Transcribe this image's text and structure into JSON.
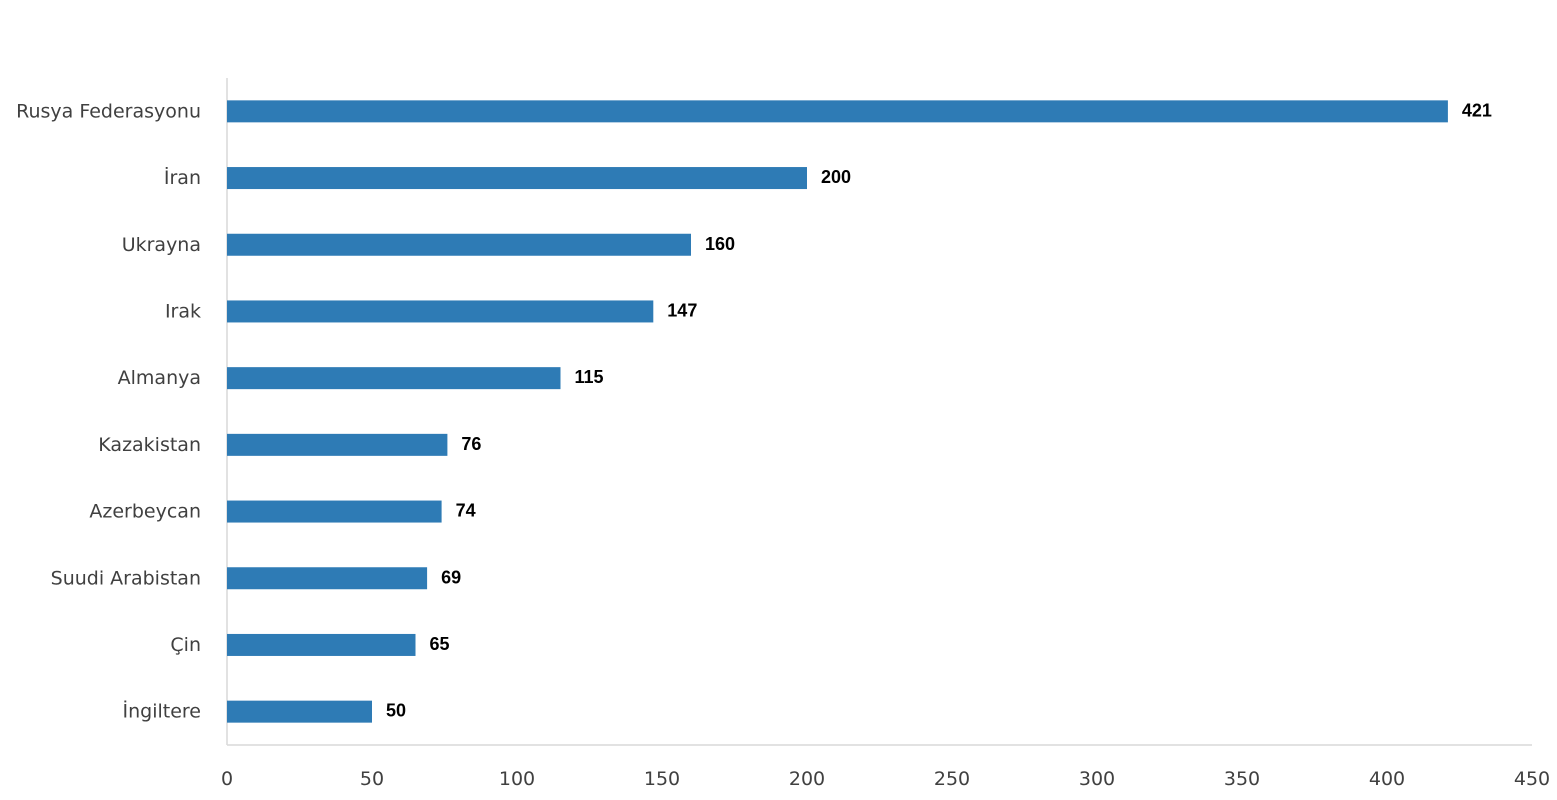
{
  "chart_data": {
    "type": "bar",
    "orientation": "horizontal",
    "title": "",
    "xlabel": "",
    "ylabel": "",
    "categories": [
      "Rusya Federasyonu",
      "İran",
      "Ukrayna",
      "Irak",
      "Almanya",
      "Kazakistan",
      "Azerbeycan",
      "Suudi Arabistan",
      "Çin",
      "İngiltere"
    ],
    "values": [
      421,
      200,
      160,
      147,
      115,
      76,
      74,
      69,
      65,
      50
    ],
    "data_labels": [
      "421",
      "200",
      "160",
      "147",
      "115",
      "76",
      "74",
      "69",
      "65",
      "50"
    ],
    "xlim": [
      0,
      450
    ],
    "x_ticks": [
      0,
      50,
      100,
      150,
      200,
      250,
      300,
      350,
      400,
      450
    ],
    "x_tick_labels": [
      "0",
      "50",
      "100",
      "150",
      "200",
      "250",
      "300",
      "350",
      "400",
      "450"
    ],
    "grid": false,
    "legend": "none",
    "colors": {
      "bar": "#2E7BB5",
      "axis": "#D9D9D9",
      "text": "#404040",
      "data_label": "#000000"
    }
  }
}
